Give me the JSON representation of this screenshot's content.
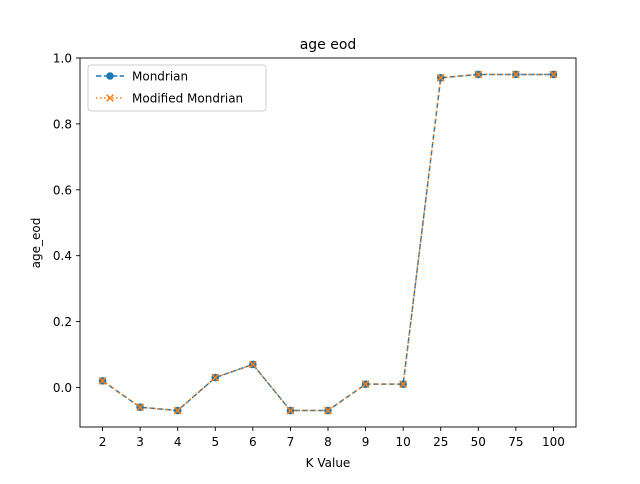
{
  "chart_data": {
    "type": "line",
    "title": "age eod",
    "xlabel": "K Value",
    "ylabel": "age_eod",
    "categories": [
      "2",
      "3",
      "4",
      "5",
      "6",
      "7",
      "8",
      "9",
      "10",
      "25",
      "50",
      "75",
      "100"
    ],
    "ylim": [
      -0.12,
      1.0
    ],
    "yticks": [
      "0.0",
      "0.2",
      "0.4",
      "0.6",
      "0.8",
      "1.0"
    ],
    "grid": false,
    "legend": "upper-left",
    "series": [
      {
        "name": "Mondrian",
        "values": [
          0.02,
          -0.06,
          -0.07,
          0.03,
          0.07,
          -0.07,
          -0.07,
          0.01,
          0.01,
          0.94,
          0.95,
          0.95,
          0.95
        ],
        "color": "#1f77b4",
        "marker": "circle",
        "linestyle": "dashed"
      },
      {
        "name": "Modified Mondrian",
        "values": [
          0.02,
          -0.06,
          -0.07,
          0.03,
          0.07,
          -0.07,
          -0.07,
          0.01,
          0.01,
          0.94,
          0.95,
          0.95,
          0.95
        ],
        "color": "#ff7f0e",
        "marker": "x",
        "linestyle": "dotted"
      }
    ]
  }
}
